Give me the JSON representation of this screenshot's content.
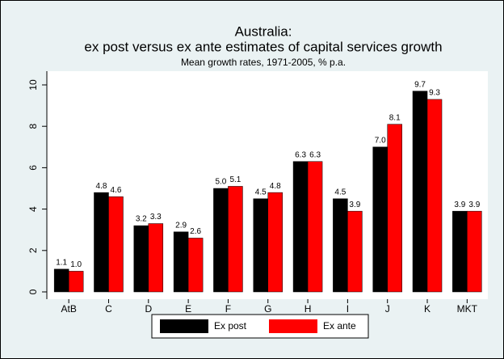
{
  "chart_data": {
    "type": "bar",
    "title": "Australia:",
    "subtitle": "ex post versus ex ante estimates of capital services growth",
    "note": "Mean growth rates, 1971-2005, % p.a.",
    "categories": [
      "AtB",
      "C",
      "D",
      "E",
      "F",
      "G",
      "H",
      "I",
      "J",
      "K",
      "MKT"
    ],
    "series": [
      {
        "name": "Ex post",
        "color": "#000000",
        "values": [
          1.1,
          4.8,
          3.2,
          2.9,
          5.0,
          4.5,
          6.3,
          4.5,
          7.0,
          9.7,
          3.9
        ],
        "value_labels": [
          "1.1",
          "4.8",
          "3.2",
          "2.9",
          "5.0",
          "4.5",
          "6.3",
          "4.5",
          "7.0",
          "9.7",
          "3.9"
        ]
      },
      {
        "name": "Ex ante",
        "color": "#ff0000",
        "values": [
          1.0,
          4.6,
          3.3,
          2.6,
          5.1,
          4.8,
          6.3,
          3.9,
          8.1,
          9.3,
          3.9
        ],
        "value_labels": [
          "1.0",
          "4.6",
          "3.3",
          "2.6",
          "5.1",
          "4.8",
          "6.3",
          "3.9",
          "8.1",
          "9.3",
          "3.9"
        ]
      }
    ],
    "ylim": [
      0,
      10
    ],
    "yticks": [
      0,
      2,
      4,
      6,
      8,
      10
    ],
    "grid": false,
    "legend": "bottom"
  }
}
